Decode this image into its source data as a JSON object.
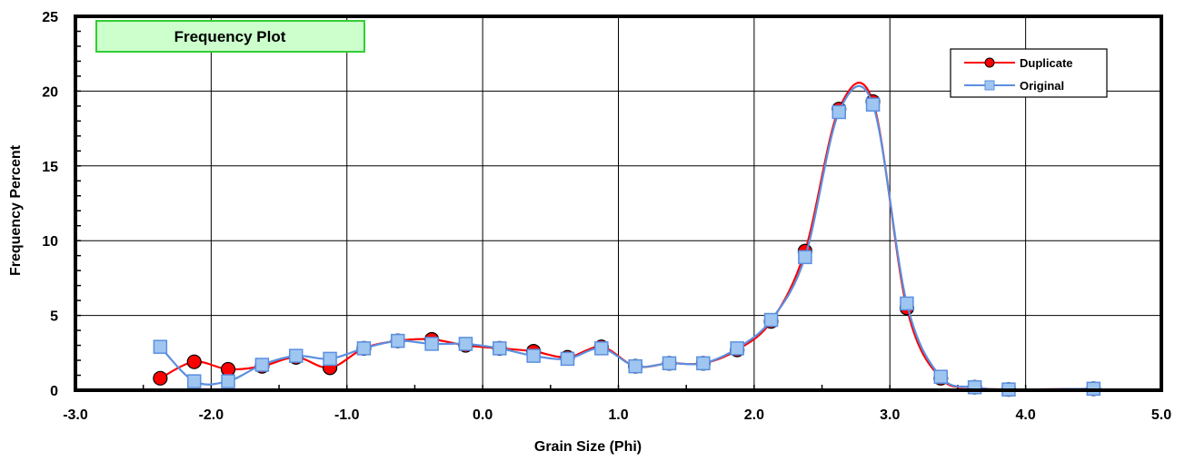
{
  "chart_data": {
    "type": "line",
    "title": "Frequency Plot",
    "xlabel": "Grain Size (Phi)",
    "ylabel": "Frequency Percent",
    "xlim": [
      -3.0,
      5.0
    ],
    "ylim": [
      0,
      25
    ],
    "x_ticks": [
      "-3.0",
      "-2.0",
      "-1.0",
      "0.0",
      "1.0",
      "2.0",
      "3.0",
      "4.0",
      "5.0"
    ],
    "y_ticks": [
      "0",
      "5",
      "10",
      "15",
      "20",
      "25"
    ],
    "grid": true,
    "legend_position": "top-right",
    "series": [
      {
        "name": "Duplicate",
        "color": "#ff0000",
        "marker": "circle",
        "marker_fill": "#ff0000",
        "x": [
          -2.375,
          -2.125,
          -1.875,
          -1.625,
          -1.375,
          -1.125,
          -0.875,
          -0.625,
          -0.375,
          -0.125,
          0.125,
          0.375,
          0.625,
          0.875,
          1.125,
          1.375,
          1.625,
          1.875,
          2.125,
          2.375,
          2.625,
          2.875,
          3.125,
          3.375,
          3.625,
          3.875,
          4.5
        ],
        "values": [
          0.8,
          1.9,
          1.4,
          1.6,
          2.2,
          1.5,
          2.8,
          3.3,
          3.4,
          3.0,
          2.8,
          2.6,
          2.2,
          2.9,
          1.6,
          1.8,
          1.8,
          2.7,
          4.6,
          9.3,
          18.8,
          19.3,
          5.5,
          0.8,
          0.2,
          0.05,
          0.1
        ]
      },
      {
        "name": "Original",
        "color": "#5b8fe0",
        "marker": "square",
        "marker_fill": "#9fc6f0",
        "x": [
          -2.375,
          -2.125,
          -1.875,
          -1.625,
          -1.375,
          -1.125,
          -0.875,
          -0.625,
          -0.375,
          -0.125,
          0.125,
          0.375,
          0.625,
          0.875,
          1.125,
          1.375,
          1.625,
          1.875,
          2.125,
          2.375,
          2.625,
          2.875,
          3.125,
          3.375,
          3.625,
          3.875,
          4.5
        ],
        "values": [
          2.9,
          0.6,
          0.6,
          1.7,
          2.3,
          2.1,
          2.8,
          3.3,
          3.1,
          3.1,
          2.8,
          2.3,
          2.1,
          2.8,
          1.6,
          1.8,
          1.8,
          2.8,
          4.7,
          8.9,
          18.6,
          19.1,
          5.8,
          0.9,
          0.2,
          0.05,
          0.1
        ]
      }
    ]
  }
}
